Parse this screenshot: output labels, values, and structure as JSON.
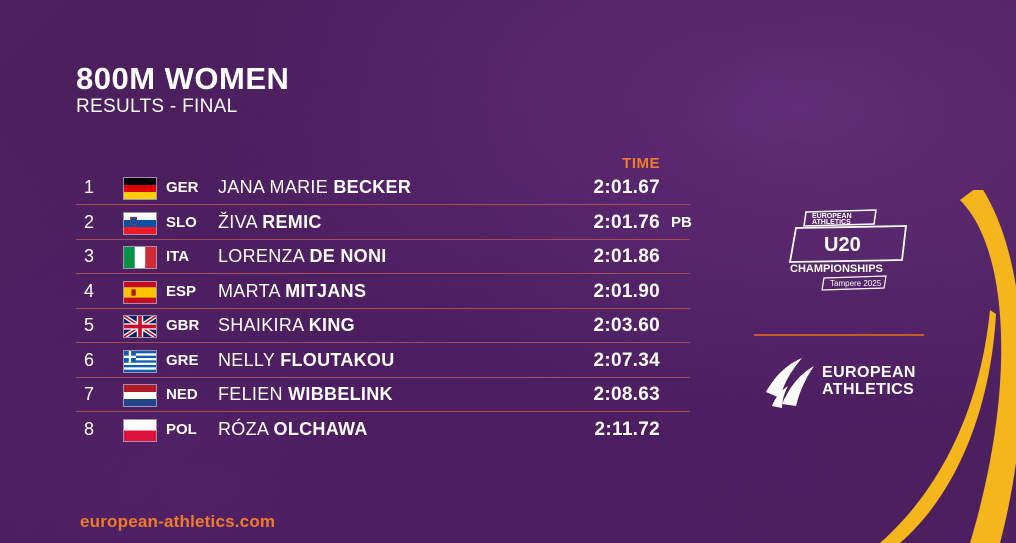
{
  "event": {
    "title": "800M WOMEN",
    "subtitle": "RESULTS - FINAL",
    "time_header": "TIME"
  },
  "results": [
    {
      "rank": "1",
      "flag": "germany-flag",
      "nat": "GER",
      "first": "JANA MARIE",
      "last": "BECKER",
      "time": "2:01.67",
      "note": ""
    },
    {
      "rank": "2",
      "flag": "slovenia-flag",
      "nat": "SLO",
      "first": "ŽIVA",
      "last": "REMIC",
      "time": "2:01.76",
      "note": "PB"
    },
    {
      "rank": "3",
      "flag": "italy-flag",
      "nat": "ITA",
      "first": "LORENZA",
      "last": "DE NONI",
      "time": "2:01.86",
      "note": ""
    },
    {
      "rank": "4",
      "flag": "spain-flag",
      "nat": "ESP",
      "first": "MARTA",
      "last": "MITJANS",
      "time": "2:01.90",
      "note": ""
    },
    {
      "rank": "5",
      "flag": "great-britain-flag",
      "nat": "GBR",
      "first": "SHAIKIRA",
      "last": "KING",
      "time": "2:03.60",
      "note": ""
    },
    {
      "rank": "6",
      "flag": "greece-flag",
      "nat": "GRE",
      "first": "NELLY",
      "last": "FLOUTAKOU",
      "time": "2:07.34",
      "note": ""
    },
    {
      "rank": "7",
      "flag": "netherlands-flag",
      "nat": "NED",
      "first": "FELIEN",
      "last": "WIBBELINK",
      "time": "2:08.63",
      "note": ""
    },
    {
      "rank": "8",
      "flag": "poland-flag",
      "nat": "POL",
      "first": "RÓZA",
      "last": "OLCHAWA",
      "time": "2:11.72",
      "note": ""
    }
  ],
  "footer": {
    "link": "european-athletics.com"
  },
  "logos": {
    "u20": {
      "line1": "EUROPEAN",
      "line2": "ATHLETICS",
      "main": "U20",
      "sub": "CHAMPIONSHIPS",
      "place": "Tampere 2025"
    },
    "european_athletics": {
      "line1": "EUROPEAN",
      "line2": "ATHLETICS"
    }
  },
  "colors": {
    "background": "#4a1e5a",
    "accent_orange": "#f07c2a",
    "row_divider": "#a74a55",
    "swoosh_yellow": "#f5b51c"
  }
}
